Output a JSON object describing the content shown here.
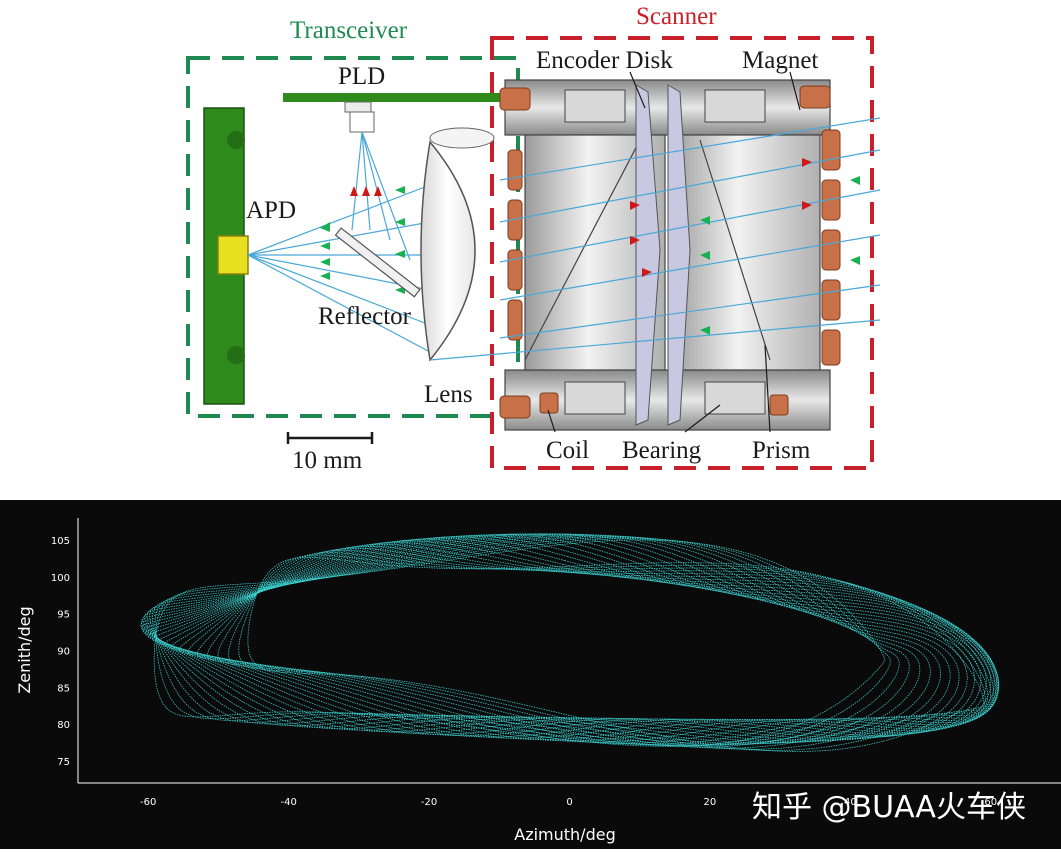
{
  "diagram": {
    "labels": {
      "transceiver": "Transceiver",
      "scanner": "Scanner",
      "pld": "PLD",
      "apd": "APD",
      "reflector": "Reflector",
      "lens": "Lens",
      "encoder_disk": "Encoder Disk",
      "magnet": "Magnet",
      "coil": "Coil",
      "bearing": "Bearing",
      "prism": "Prism",
      "scale_bar": "10 mm"
    },
    "colors": {
      "transceiver_box": "#1e8a52",
      "scanner_box": "#c8202a",
      "pcb_green": "#2f8a1c",
      "apd_yellow": "#e8e020",
      "laser_red": "#d01818",
      "return_green": "#18b050",
      "ray_blue": "#4aa8d8",
      "copper": "#c87048"
    }
  },
  "plot": {
    "watermark": "知乎 @BUAA火车侠",
    "trace_color": "#3ed6d6",
    "chart_data": {
      "type": "line",
      "xlabel": "Azimuth/deg",
      "ylabel": "Zenith/deg",
      "xlim": [
        -70,
        70
      ],
      "ylim": [
        72,
        108
      ],
      "x_ticks": [
        "-60",
        "-40",
        "-20",
        "0",
        "20",
        "40",
        "60"
      ],
      "y_ticks": [
        "105",
        "100",
        "95",
        "90",
        "85",
        "80",
        "75"
      ],
      "x_tick_values": [
        -60,
        -40,
        -20,
        0,
        20,
        40,
        60
      ],
      "y_tick_values": [
        105,
        100,
        95,
        90,
        85,
        80,
        75
      ],
      "grid": false,
      "pattern": {
        "center_zenith": 90,
        "azimuth_extent": [
          -60,
          60
        ],
        "zenith_extent": [
          75,
          103
        ]
      }
    }
  }
}
